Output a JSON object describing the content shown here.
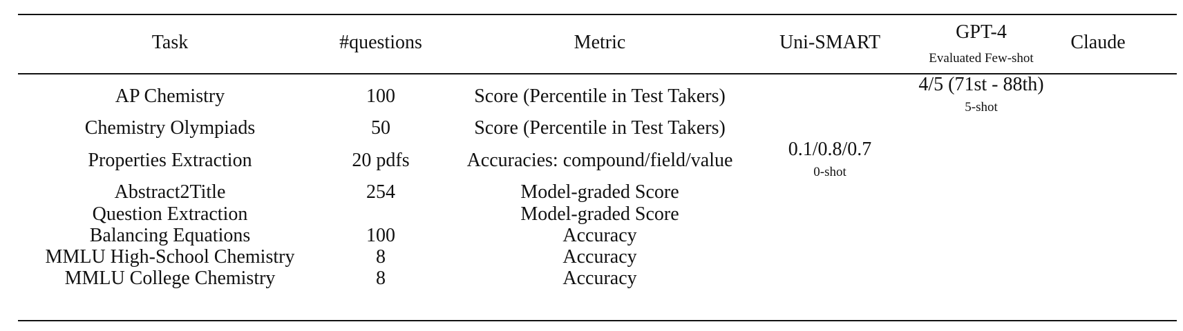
{
  "table": {
    "headers": {
      "task": "Task",
      "questions": "#questions",
      "metric": "Metric",
      "unismart": "Uni-SMART",
      "gpt4": "GPT-4",
      "gpt4_sub": "Evaluated Few-shot",
      "claude": "Claude"
    },
    "rows": [
      {
        "task": "AP Chemistry",
        "questions": "100",
        "metric": "Score (Percentile in Test Takers)"
      },
      {
        "task": "Chemistry Olympiads",
        "questions": "50",
        "metric": "Score (Percentile in Test Takers)"
      },
      {
        "task": "Properties Extraction",
        "questions": "20 pdfs",
        "metric": "Accuracies: compound/field/value"
      },
      {
        "task": "Abstract2Title",
        "questions": "254",
        "metric": "Model-graded Score"
      },
      {
        "task": "Question Extraction",
        "questions": "",
        "metric": "Model-graded Score"
      },
      {
        "task": "Balancing Equations",
        "questions": "100",
        "metric": "Accuracy"
      },
      {
        "task": "MMLU High-School Chemistry",
        "questions": "8",
        "metric": "Accuracy"
      },
      {
        "task": "MMLU College Chemistry",
        "questions": "8",
        "metric": "Accuracy"
      }
    ],
    "gpt4_result": {
      "value": "4/5 (71st - 88th)",
      "setting": "5-shot"
    },
    "unismart_result": {
      "value": "0.1/0.8/0.7",
      "setting": "0-shot"
    }
  }
}
